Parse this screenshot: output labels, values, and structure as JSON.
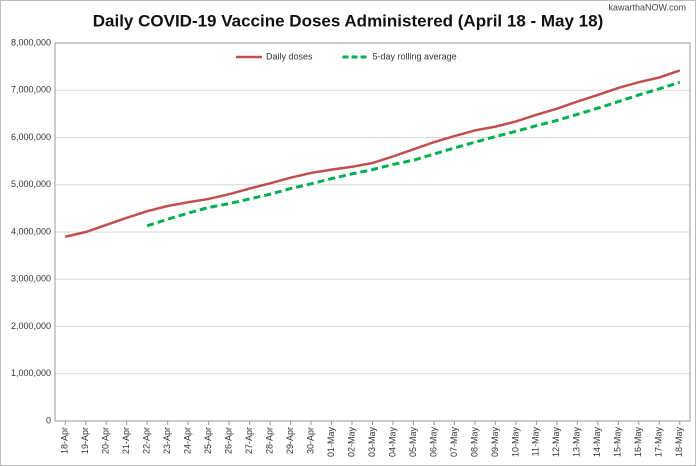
{
  "chart_data": {
    "type": "line",
    "title": "Daily COVID-19 Vaccine Doses Administered (April 18 - May 18)",
    "watermark": "kawarthaNOW.com",
    "categories": [
      "18-Apr",
      "19-Apr",
      "20-Apr",
      "21-Apr",
      "22-Apr",
      "23-Apr",
      "24-Apr",
      "25-Apr",
      "26-Apr",
      "27-Apr",
      "28-Apr",
      "29-Apr",
      "30-Apr",
      "01-May",
      "02-May",
      "03-May",
      "04-May",
      "05-May",
      "06-May",
      "07-May",
      "08-May",
      "09-May",
      "10-May",
      "11-May",
      "12-May",
      "13-May",
      "14-May",
      "15-May",
      "16-May",
      "17-May",
      "18-May"
    ],
    "series": [
      {
        "name": "Daily doses",
        "color": "#c0504d",
        "dash": false,
        "values": [
          3900000,
          4000000,
          4150000,
          4300000,
          4440000,
          4550000,
          4630000,
          4700000,
          4800000,
          4920000,
          5030000,
          5150000,
          5250000,
          5320000,
          5380000,
          5460000,
          5600000,
          5750000,
          5900000,
          6030000,
          6150000,
          6230000,
          6340000,
          6480000,
          6610000,
          6760000,
          6900000,
          7050000,
          7170000,
          7270000,
          7420000
        ]
      },
      {
        "name": "5-day rolling average",
        "color": "#00b050",
        "dash": true,
        "values": [
          null,
          null,
          null,
          null,
          4130000,
          4270000,
          4400000,
          4520000,
          4600000,
          4700000,
          4800000,
          4920000,
          5020000,
          5130000,
          5230000,
          5320000,
          5430000,
          5520000,
          5650000,
          5780000,
          5900000,
          6020000,
          6130000,
          6250000,
          6360000,
          6490000,
          6620000,
          6760000,
          6900000,
          7030000,
          7170000
        ]
      }
    ],
    "ylim": [
      0,
      8000000
    ],
    "yticks": [
      0,
      {
        "value": 1000000,
        "label": "1,000,000"
      },
      {
        "value": 2000000,
        "label": "2,000,000"
      },
      {
        "value": 3000000,
        "label": "3,000,000"
      },
      {
        "value": 4000000,
        "label": "4,000,000"
      },
      {
        "value": 5000000,
        "label": "5,000,000"
      },
      {
        "value": 6000000,
        "label": "6,000,000"
      },
      {
        "value": 7000000,
        "label": "7,000,000"
      },
      {
        "value": 8000000,
        "label": "8,000,000"
      }
    ],
    "grid": true
  }
}
